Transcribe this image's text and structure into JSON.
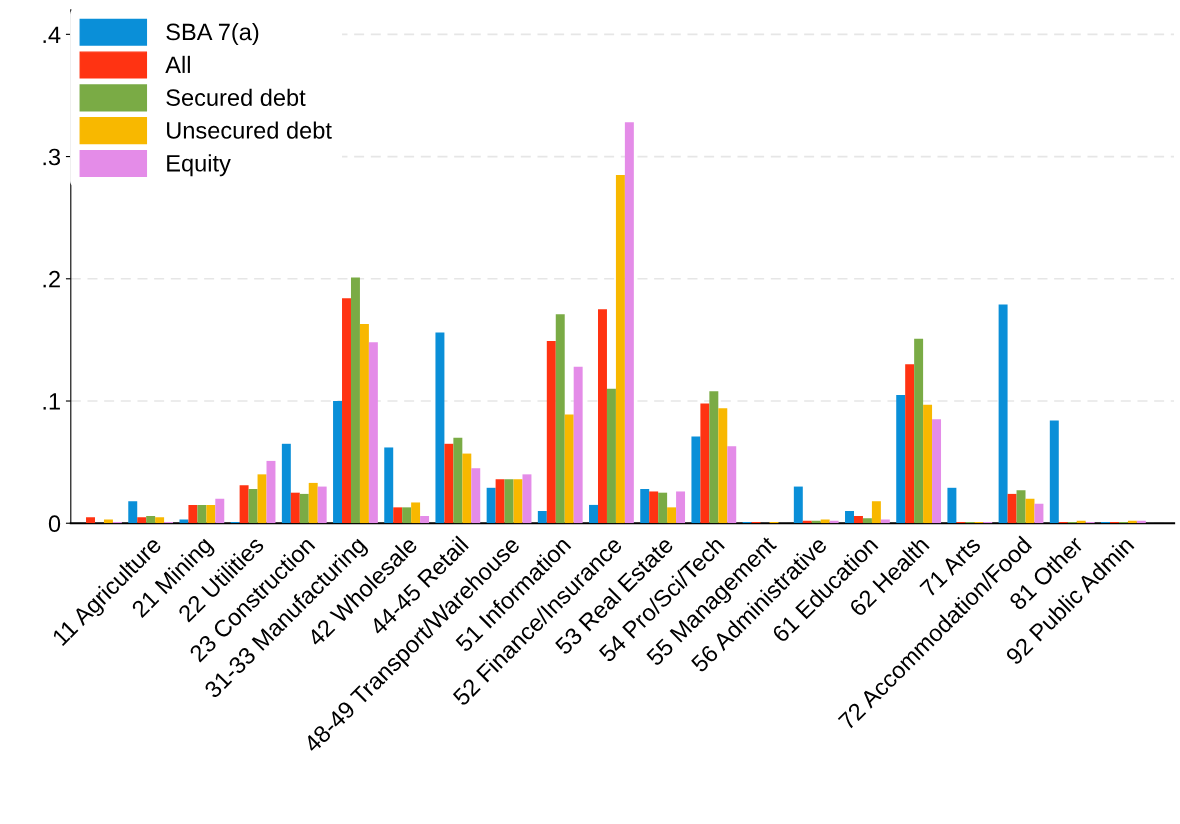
{
  "chart_data": {
    "type": "bar",
    "categories": [
      null,
      "11 Agriculture",
      "21 Mining",
      "22 Utilities",
      "23 Construction",
      "31-33 Manufacturing",
      "42 Wholesale",
      "44-45 Retail",
      "48-49 Transport/Warehouse",
      "51 Information",
      "52 Finance/Insurance",
      "53 Real Estate",
      "54 Pro/Sci/Tech",
      "55 Management",
      "56 Administrative",
      "61 Education",
      "62 Health",
      "71 Arts",
      "72 Accommodation/Food",
      "81 Other",
      "92 Public Admin"
    ],
    "series": [
      {
        "name": "SBA 7(a)",
        "color": "#0a8fd8",
        "values": [
          0,
          0.018,
          0.003,
          0.001,
          0.065,
          0.1,
          0.062,
          0.156,
          0.029,
          0.01,
          0.015,
          0.028,
          0.071,
          0.001,
          0.03,
          0.01,
          0.105,
          0.029,
          0.179,
          0.084,
          0.001
        ]
      },
      {
        "name": "All",
        "color": "#ff3312",
        "values": [
          0.005,
          0.005,
          0.015,
          0.031,
          0.025,
          0.184,
          0.013,
          0.065,
          0.036,
          0.149,
          0.175,
          0.026,
          0.098,
          0.001,
          0.002,
          0.006,
          0.13,
          0.001,
          0.024,
          0.001,
          0.001
        ]
      },
      {
        "name": "Secured debt",
        "color": "#7aab45",
        "values": [
          0,
          0.006,
          0.015,
          0.028,
          0.024,
          0.201,
          0.013,
          0.07,
          0.036,
          0.171,
          0.11,
          0.025,
          0.108,
          0,
          0.002,
          0.004,
          0.151,
          0.001,
          0.027,
          0.001,
          0.001
        ]
      },
      {
        "name": "Unsecured debt",
        "color": "#f8b800",
        "values": [
          0.003,
          0.005,
          0.015,
          0.04,
          0.033,
          0.163,
          0.017,
          0.057,
          0.036,
          0.089,
          0.285,
          0.013,
          0.094,
          0.001,
          0.003,
          0.018,
          0.097,
          0.001,
          0.02,
          0.002,
          0.002
        ]
      },
      {
        "name": "Equity",
        "color": "#e48ce8",
        "values": [
          0.001,
          0.001,
          0.02,
          0.051,
          0.03,
          0.148,
          0.006,
          0.045,
          0.04,
          0.128,
          0.328,
          0.026,
          0.063,
          0,
          0.002,
          0.003,
          0.085,
          0.001,
          0.016,
          0.001,
          0.002
        ]
      }
    ],
    "ylim": [
      0,
      0.42
    ],
    "yticks": [
      0,
      {
        "value": 0.1,
        "label": ".1"
      },
      {
        "value": 0.2,
        "label": ".2"
      },
      {
        "value": 0.3,
        "label": ".3"
      },
      {
        "value": 0.4,
        "label": ".4"
      }
    ],
    "grid": "y",
    "legend": "top left"
  }
}
